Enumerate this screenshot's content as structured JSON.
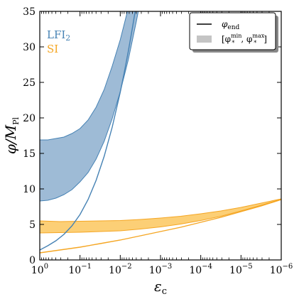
{
  "chart_data": {
    "type": "line",
    "xlabel": "ε",
    "xlabel_sub": "c",
    "ylabel": "φ/M",
    "ylabel_sub": "Pl",
    "x_scale": "log-reversed",
    "xlim": [
      1,
      1e-06
    ],
    "ylim": [
      0,
      35
    ],
    "x_ticks": [
      {
        "base": "10",
        "exp": "0",
        "value": 1
      },
      {
        "base": "10",
        "exp": "−1",
        "value": 0.1
      },
      {
        "base": "10",
        "exp": "−2",
        "value": 0.01
      },
      {
        "base": "10",
        "exp": "−3",
        "value": 0.001
      },
      {
        "base": "10",
        "exp": "−4",
        "value": 0.0001
      },
      {
        "base": "10",
        "exp": "−5",
        "value": 1e-05
      },
      {
        "base": "10",
        "exp": "−6",
        "value": 1e-06
      }
    ],
    "y_ticks": [
      "0",
      "5",
      "10",
      "15",
      "20",
      "25",
      "30",
      "35"
    ],
    "grid": false,
    "legend": {
      "placement": "top-right",
      "items": [
        {
          "kind": "line",
          "label": "φ",
          "sub": "end"
        },
        {
          "kind": "band",
          "label": "[φ",
          "sup1": "min",
          "mid": ", φ",
          "sup2": "max",
          "end": "]",
          "star": "*"
        }
      ]
    },
    "series": [
      {
        "name": "LFI",
        "name_sub": "2",
        "color": "#4682b4",
        "fill": "#9ebbd6",
        "end_line": {
          "x": [
            0,
            0.2,
            0.4,
            0.6,
            0.8,
            1.0,
            1.2,
            1.4,
            1.6,
            1.8,
            2.0,
            2.1,
            2.2,
            2.3,
            2.4
          ],
          "y": [
            1.4,
            2.0,
            2.7,
            3.6,
            4.8,
            6.4,
            8.5,
            11.2,
            14.6,
            18.7,
            23.6,
            26.4,
            29.4,
            32.6,
            36.0
          ]
        },
        "band_upper": {
          "x": [
            0,
            0.2,
            0.4,
            0.6,
            0.8,
            1.0,
            1.2,
            1.4,
            1.6,
            1.8,
            2.0,
            2.2,
            2.3,
            2.4,
            2.5
          ],
          "y": [
            16.9,
            16.9,
            17.1,
            17.3,
            17.8,
            18.5,
            19.7,
            21.5,
            24.0,
            27.3,
            31.0,
            35.5,
            38.0,
            40.5,
            43.0
          ]
        },
        "band_lower": {
          "x": [
            0,
            0.2,
            0.4,
            0.6,
            0.8,
            1.0,
            1.2,
            1.4,
            1.6,
            1.8,
            2.0,
            2.2,
            2.4,
            2.5,
            2.6
          ],
          "y": [
            8.3,
            8.4,
            8.7,
            9.2,
            9.9,
            11.0,
            12.3,
            14.2,
            16.7,
            19.9,
            23.7,
            28.2,
            33.6,
            36.5,
            39.5
          ]
        }
      },
      {
        "name": "SI",
        "color": "#f5a623",
        "fill": "#fccf76",
        "end_line": {
          "x": [
            0,
            0.5,
            1.0,
            1.5,
            2.0,
            2.5,
            3.0,
            3.5,
            4.0,
            4.5,
            5.0,
            5.5,
            6.0
          ],
          "y": [
            1.0,
            1.4,
            1.8,
            2.3,
            2.8,
            3.4,
            4.0,
            4.6,
            5.3,
            6.0,
            6.8,
            7.6,
            8.5
          ]
        },
        "band_upper": {
          "x": [
            0,
            0.5,
            1.0,
            1.5,
            2.0,
            2.5,
            3.0,
            3.5,
            4.0,
            4.5,
            5.0,
            5.5,
            6.0
          ],
          "y": [
            5.5,
            5.4,
            5.45,
            5.5,
            5.55,
            5.7,
            5.9,
            6.15,
            6.5,
            6.9,
            7.4,
            8.0,
            8.6
          ]
        },
        "band_lower": {
          "x": [
            0,
            0.5,
            1.0,
            1.5,
            2.0,
            2.5,
            3.0,
            3.5,
            4.0,
            4.5,
            5.0,
            5.5,
            6.0
          ],
          "y": [
            3.8,
            3.85,
            3.9,
            4.0,
            4.1,
            4.35,
            4.65,
            5.05,
            5.55,
            6.15,
            6.9,
            7.7,
            8.55
          ]
        }
      }
    ]
  }
}
